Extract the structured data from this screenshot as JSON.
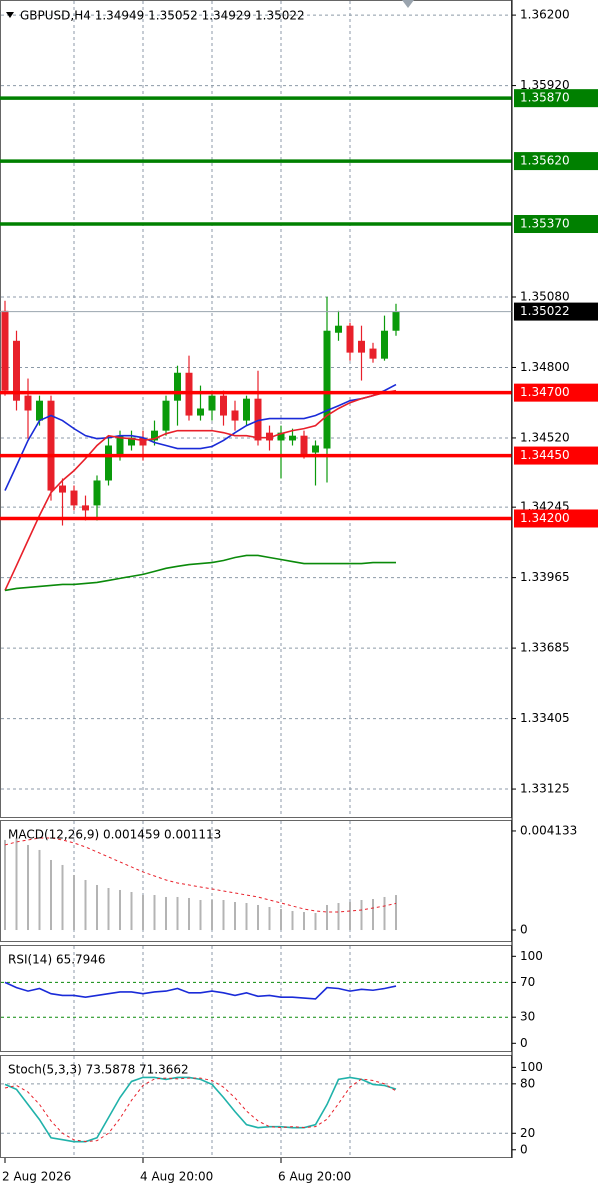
{
  "chart_data": [
    {
      "type": "candlestick",
      "title": "GBPUSD,H4  1.34949 1.35052 1.34929 1.35022",
      "categories": [
        "2 Aug 2026",
        null,
        null,
        null,
        null,
        null,
        null,
        null,
        null,
        null,
        null,
        null,
        "4 Aug 20:00",
        null,
        null,
        null,
        null,
        null,
        null,
        null,
        null,
        null,
        null,
        null,
        "6 Aug 20:00",
        null,
        null,
        null,
        null,
        null,
        null,
        null,
        null,
        null,
        null
      ],
      "open": [
        1.35025,
        1.34906,
        1.34688,
        1.34589,
        1.34668,
        1.34331,
        1.34311,
        1.34252,
        1.34252,
        1.34351,
        1.3445,
        1.3449,
        1.34521,
        1.3451,
        1.34549,
        1.34668,
        1.34779,
        1.34609,
        1.34629,
        1.34688,
        1.34629,
        1.34589,
        1.34676,
        1.34541,
        1.3451,
        1.3451,
        1.34529,
        1.34462,
        1.34478,
        1.34938,
        1.34966,
        1.34906,
        1.34875,
        1.34835,
        1.34946
      ],
      "high": [
        1.35065,
        1.34946,
        1.34756,
        1.34688,
        1.34688,
        1.34359,
        1.34331,
        1.34291,
        1.34371,
        1.34529,
        1.34549,
        1.34549,
        1.34549,
        1.34589,
        1.34688,
        1.34807,
        1.34847,
        1.34728,
        1.34708,
        1.34708,
        1.34668,
        1.34688,
        1.34787,
        1.34569,
        1.34569,
        1.34557,
        1.34549,
        1.3451,
        1.35081,
        1.35025,
        1.34978,
        1.34966,
        1.34898,
        1.35006,
        1.35053
      ],
      "low": [
        1.34688,
        1.34629,
        1.34517,
        1.34569,
        1.34271,
        1.34172,
        1.34232,
        1.34192,
        1.34192,
        1.34331,
        1.3443,
        1.3447,
        1.3443,
        1.3449,
        1.34529,
        1.34569,
        1.34589,
        1.34589,
        1.34589,
        1.34569,
        1.34549,
        1.34569,
        1.3449,
        1.3447,
        1.34359,
        1.3449,
        1.34438,
        1.34331,
        1.34343,
        1.34906,
        1.34827,
        1.34748,
        1.34819,
        1.34827,
        1.34926
      ],
      "close": [
        1.34708,
        1.34668,
        1.34629,
        1.34668,
        1.34311,
        1.34303,
        1.34252,
        1.34232,
        1.34351,
        1.3449,
        1.34529,
        1.34521,
        1.3449,
        1.34549,
        1.34668,
        1.34779,
        1.34609,
        1.34637,
        1.34688,
        1.34609,
        1.34589,
        1.34676,
        1.3451,
        1.3451,
        1.34541,
        1.34529,
        1.3445,
        1.3449,
        1.34946,
        1.34966,
        1.34859,
        1.34859,
        1.34835,
        1.34946,
        1.35022
      ],
      "up_color": "#0a9a0a",
      "down_color": "#e8202a",
      "overlays": [
        {
          "color": "#1a2bd8",
          "values": [
            1.34311,
            1.3441,
            1.3451,
            1.34589,
            1.34609,
            1.34589,
            1.34557,
            1.34529,
            1.34517,
            1.34521,
            1.34529,
            1.34529,
            1.34521,
            1.34502,
            1.3449,
            1.34478,
            1.34478,
            1.34478,
            1.34486,
            1.3451,
            1.34541,
            1.34569,
            1.34589,
            1.34597,
            1.34597,
            1.34597,
            1.34597,
            1.34609,
            1.34629,
            1.34648,
            1.34668,
            1.34676,
            1.34688,
            1.34708,
            1.34732
          ]
        },
        {
          "color": "#e8202a",
          "values": [
            1.33914,
            1.34013,
            1.34113,
            1.34212,
            1.34303,
            1.34351,
            1.3439,
            1.34438,
            1.3449,
            1.34529,
            1.34521,
            1.34517,
            1.3451,
            1.34517,
            1.34537,
            1.34549,
            1.34549,
            1.34549,
            1.34549,
            1.34541,
            1.34529,
            1.34529,
            1.34521,
            1.34521,
            1.34537,
            1.34549,
            1.34557,
            1.34569,
            1.34609,
            1.34637,
            1.3466,
            1.34676,
            1.34688,
            1.347,
            1.34708
          ]
        },
        {
          "color": "#0a8a0a",
          "values": [
            1.33914,
            1.33922,
            1.33926,
            1.3393,
            1.33934,
            1.33938,
            1.33938,
            1.33942,
            1.33946,
            1.33954,
            1.33962,
            1.3397,
            1.33978,
            1.3399,
            1.34002,
            1.3401,
            1.34017,
            1.34021,
            1.34025,
            1.34033,
            1.34045,
            1.34053,
            1.34053,
            1.34045,
            1.34037,
            1.34029,
            1.34021,
            1.34021,
            1.34021,
            1.34021,
            1.34021,
            1.34021,
            1.34025,
            1.34025,
            1.34025
          ]
        }
      ],
      "levels": [
        {
          "value": 1.3587,
          "label": "1.35870",
          "color": "#008000",
          "box": "#008000"
        },
        {
          "value": 1.3562,
          "label": "1.35620",
          "color": "#008000",
          "box": "#008000"
        },
        {
          "value": 1.3537,
          "label": "1.35370",
          "color": "#008000",
          "box": "#008000"
        },
        {
          "value": 1.35022,
          "label": "1.35022",
          "color": "#9aa4ae",
          "box": "#000000"
        },
        {
          "value": 1.347,
          "label": "1.34700",
          "color": "#ff0000",
          "box": "#ff0000"
        },
        {
          "value": 1.3445,
          "label": "1.34450",
          "color": "#ff0000",
          "box": "#ff0000"
        },
        {
          "value": 1.342,
          "label": "1.34200",
          "color": "#ff0000",
          "box": "#ff0000"
        }
      ],
      "ylim": [
        1.3301,
        1.3626
      ],
      "yticks": [
        {
          "value": 1.362,
          "label": "1.36200"
        },
        {
          "value": 1.3592,
          "label": "1.35920"
        },
        {
          "value": 1.3508,
          "label": "1.35080"
        },
        {
          "value": 1.348,
          "label": "1.34800"
        },
        {
          "value": 1.3452,
          "label": "1.34520"
        },
        {
          "value": 1.34245,
          "label": "1.34245"
        },
        {
          "value": 1.33965,
          "label": "1.33965"
        },
        {
          "value": 1.33685,
          "label": "1.33685"
        },
        {
          "value": 1.33405,
          "label": "1.33405"
        },
        {
          "value": 1.33125,
          "label": "1.33125"
        }
      ],
      "grid": true
    },
    {
      "type": "macd",
      "title": "MACD(12,26,9) 0.001459 0.001113",
      "histogram": {
        "color": "#b4b4b4",
        "values": [
          0.003757,
          0.003841,
          0.003549,
          0.00334,
          0.002922,
          0.002714,
          0.002296,
          0.002087,
          0.001879,
          0.001753,
          0.00167,
          0.001586,
          0.001461,
          0.001461,
          0.001378,
          0.001378,
          0.001336,
          0.001252,
          0.001252,
          0.001252,
          0.001169,
          0.001127,
          0.001044,
          0.00096,
          0.000877,
          0.000793,
          0.000751,
          0.00071,
          0.001044,
          0.001127,
          0.001169,
          0.001252,
          0.001294,
          0.001378,
          0.001459
        ]
      },
      "series": [
        {
          "color": "#e8202a",
          "style": "dashed",
          "values": [
            0.003549,
            0.003674,
            0.003757,
            0.003841,
            0.003841,
            0.003757,
            0.003632,
            0.003465,
            0.003257,
            0.003048,
            0.002839,
            0.00263,
            0.002422,
            0.002255,
            0.002087,
            0.001962,
            0.001879,
            0.001795,
            0.001712,
            0.001628,
            0.001545,
            0.001461,
            0.001378,
            0.001252,
            0.001127,
            0.001002,
            0.000877,
            0.000793,
            0.000751,
            0.000751,
            0.000793,
            0.000835,
            0.000919,
            0.001002,
            0.001113
          ]
        }
      ],
      "ylim": [
        -0.0005,
        0.00459
      ],
      "yticks": [
        0,
        0.004133
      ],
      "grid": false
    },
    {
      "type": "line",
      "title": "RSI(14) 65.7946",
      "series": [
        {
          "color": "#1a2bd8",
          "style": "solid",
          "values": [
            70,
            64,
            60,
            63,
            57,
            55,
            55,
            53,
            55,
            57,
            59,
            59,
            57,
            59,
            60,
            63,
            58,
            58,
            60,
            58,
            55,
            58,
            54,
            55,
            53,
            53,
            52,
            51,
            64,
            63,
            60,
            62,
            61,
            63,
            65.7946
          ]
        }
      ],
      "levels": [
        30,
        70
      ],
      "level_color": "#0a8a0a",
      "ylim": [
        -10,
        113
      ],
      "yticks": [
        0,
        30,
        70,
        100
      ],
      "grid": false
    },
    {
      "type": "line",
      "title": "Stoch(5,3,3) 73.5878 71.3662",
      "series": [
        {
          "color": "#20b2aa",
          "style": "solid",
          "values": [
            79.3,
            73.2,
            54.9,
            36.6,
            14.6,
            12.2,
            9.8,
            9.8,
            14.6,
            39,
            63.4,
            82.9,
            87.8,
            87.8,
            85.4,
            87.8,
            87.8,
            85.4,
            79.3,
            63.4,
            46.3,
            30.5,
            26.8,
            28,
            28,
            26.8,
            26.8,
            30.5,
            54.9,
            85.4,
            87.8,
            85.4,
            79.3,
            78,
            73.5878
          ]
        },
        {
          "color": "#e8202a",
          "style": "dashed",
          "values": [
            75,
            78,
            70,
            55,
            35,
            20,
            12,
            10,
            11,
            20,
            38,
            60,
            78,
            86,
            87,
            86,
            87,
            87,
            84,
            76,
            63,
            47,
            35,
            28,
            27,
            28,
            27,
            28,
            37,
            56,
            76,
            86,
            84,
            80,
            71.3662
          ]
        }
      ],
      "levels": [
        20,
        80
      ],
      "level_color": "#8c9aa8",
      "ylim": [
        -10,
        115
      ],
      "yticks": [
        0,
        20,
        80,
        100
      ],
      "grid": false
    }
  ]
}
